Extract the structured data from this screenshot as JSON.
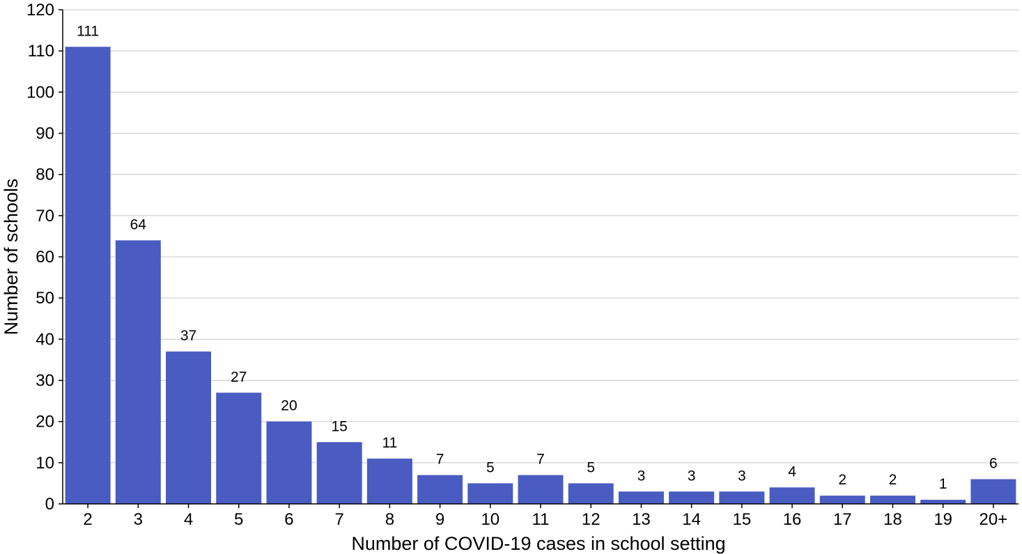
{
  "chart_data": {
    "type": "bar",
    "title": "",
    "xlabel": "Number of COVID-19 cases in school setting",
    "ylabel": "Number of schools",
    "categories": [
      "2",
      "3",
      "4",
      "5",
      "6",
      "7",
      "8",
      "9",
      "10",
      "11",
      "12",
      "13",
      "14",
      "15",
      "16",
      "17",
      "18",
      "19",
      "20+"
    ],
    "values": [
      111,
      64,
      37,
      27,
      20,
      15,
      11,
      7,
      5,
      7,
      5,
      3,
      3,
      3,
      4,
      2,
      2,
      1,
      6
    ],
    "ylim": [
      0,
      120
    ],
    "yticks": [
      0,
      10,
      20,
      30,
      40,
      50,
      60,
      70,
      80,
      90,
      100,
      110,
      120
    ],
    "grid": true,
    "legend": "none",
    "bar_color": "#4a5cc2",
    "data_labels": true
  }
}
